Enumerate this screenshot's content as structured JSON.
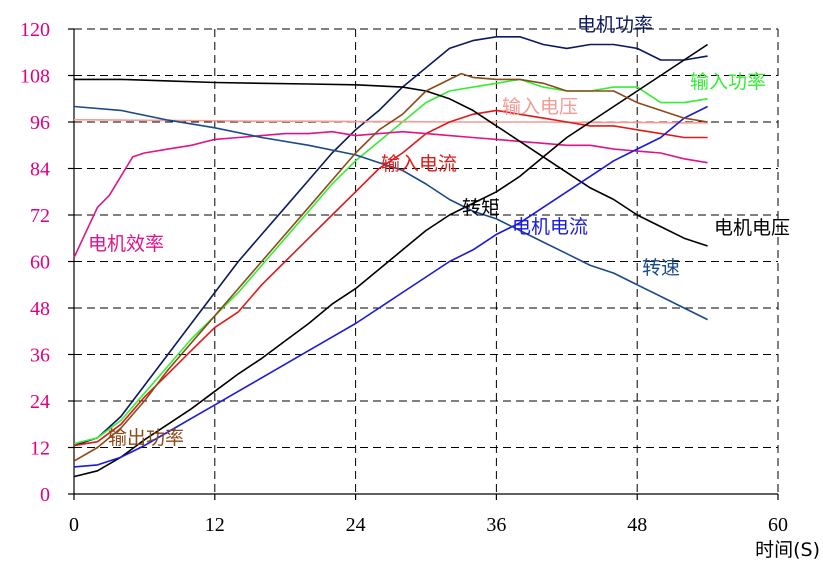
{
  "chart_data": {
    "type": "line",
    "xlabel": "时间(S)",
    "ylabel": "",
    "xlim": [
      0,
      60
    ],
    "ylim": [
      0,
      120
    ],
    "x_ticks": [
      0,
      12,
      24,
      36,
      48,
      60
    ],
    "y_ticks": [
      0,
      12,
      24,
      36,
      48,
      60,
      72,
      84,
      96,
      108,
      120
    ],
    "grid": true,
    "legend": "inline labels",
    "colors": {
      "y_tick_labels": "#e0007f",
      "x_tick_labels": "#000000"
    },
    "series": [
      {
        "name": "电机功率",
        "color": "#0b1a5e",
        "x": [
          0,
          2,
          4,
          6,
          8,
          10,
          12,
          14,
          16,
          18,
          20,
          22,
          24,
          26,
          28,
          30,
          32,
          34,
          36,
          38,
          40,
          42,
          44,
          46,
          48,
          50,
          52,
          54
        ],
        "y": [
          12.5,
          14.5,
          20,
          28,
          36,
          44,
          52,
          60,
          67,
          74,
          81,
          88,
          94,
          99,
          105,
          110,
          115,
          117,
          118,
          118,
          116,
          115,
          116,
          116,
          115,
          112,
          112,
          113
        ]
      },
      {
        "name": "输入功率",
        "color": "#33ee33",
        "x": [
          0,
          2,
          4,
          6,
          8,
          10,
          12,
          14,
          16,
          18,
          20,
          22,
          24,
          26,
          28,
          30,
          32,
          34,
          36,
          38,
          40,
          42,
          44,
          46,
          48,
          50,
          52,
          54
        ],
        "y": [
          13,
          14.5,
          19,
          26,
          33,
          40,
          46,
          52,
          59,
          66,
          73,
          80,
          86,
          91,
          96,
          101,
          104,
          105,
          106,
          107,
          105,
          104,
          104,
          105,
          105,
          101,
          101,
          102
        ]
      },
      {
        "name": "输入电压",
        "color": "#f59a94",
        "x": [
          0,
          4,
          8,
          12,
          16,
          20,
          24,
          28,
          32,
          36,
          40,
          44,
          48,
          52,
          54
        ],
        "y": [
          96.6,
          96.5,
          96.4,
          96.3,
          96.2,
          96.2,
          96.1,
          96.1,
          96.0,
          96.0,
          96.0,
          95.9,
          95.9,
          95.8,
          95.8
        ]
      },
      {
        "name": "输入电流",
        "color": "#e01a1a",
        "x": [
          0,
          2,
          4,
          6,
          8,
          10,
          12,
          14,
          16,
          18,
          20,
          22,
          24,
          26,
          28,
          30,
          32,
          34,
          36,
          38,
          40,
          42,
          44,
          46,
          48,
          50,
          52,
          54
        ],
        "y": [
          12.5,
          13.5,
          18,
          25,
          31,
          37,
          43,
          47,
          54,
          60,
          66,
          72,
          78,
          84,
          88,
          93,
          96,
          98,
          99,
          98,
          97,
          96,
          95,
          95,
          94,
          93,
          92,
          92
        ]
      },
      {
        "name": "电机效率",
        "color": "#e0148a",
        "x": [
          0,
          2,
          3,
          4,
          5,
          6,
          8,
          10,
          12,
          14,
          16,
          18,
          20,
          22,
          24,
          26,
          28,
          30,
          32,
          34,
          36,
          38,
          40,
          42,
          44,
          46,
          48,
          50,
          52,
          54
        ],
        "y": [
          61,
          74,
          77,
          82,
          87,
          88,
          89,
          90,
          91.5,
          92,
          92.5,
          93,
          93,
          93.5,
          92.5,
          93,
          93.5,
          93,
          92.5,
          92,
          91.5,
          91,
          90.5,
          90,
          90,
          89,
          88.5,
          88,
          86.5,
          85.5
        ]
      },
      {
        "name": "电机电压",
        "color": "#000000",
        "x": [
          0,
          4,
          8,
          12,
          16,
          20,
          24,
          28,
          30,
          32,
          34,
          36,
          38,
          40,
          42,
          44,
          46,
          48,
          50,
          52,
          54
        ],
        "y": [
          107,
          107,
          106.6,
          106.2,
          106,
          105.8,
          105.6,
          105,
          104,
          102,
          99,
          95,
          91,
          87,
          83,
          79,
          76,
          72,
          69,
          66,
          64
        ]
      },
      {
        "name": "转矩",
        "color": "#000000",
        "x": [
          0,
          2,
          4,
          6,
          8,
          10,
          12,
          14,
          16,
          18,
          20,
          22,
          24,
          26,
          28,
          30,
          32,
          34,
          36,
          38,
          40,
          42,
          44,
          46,
          48,
          50,
          52,
          54
        ],
        "y": [
          4.5,
          6,
          9.5,
          14,
          18,
          22,
          26.5,
          31,
          35,
          39.5,
          44,
          49,
          53,
          58,
          63,
          68,
          72,
          75,
          78,
          82,
          87,
          92,
          96,
          100,
          104,
          108,
          112,
          116
        ]
      },
      {
        "name": "电机电流",
        "color": "#1a1adc",
        "x": [
          0,
          2,
          4,
          6,
          8,
          10,
          12,
          14,
          16,
          18,
          20,
          22,
          24,
          26,
          28,
          30,
          32,
          34,
          36,
          38,
          40,
          42,
          44,
          46,
          48,
          50,
          52,
          54
        ],
        "y": [
          7,
          7.5,
          9.5,
          12.5,
          16,
          19.5,
          23,
          26.5,
          30,
          33.5,
          37,
          40.5,
          44,
          48,
          52,
          56,
          60,
          63,
          67,
          70,
          74,
          78,
          82,
          86,
          89,
          92,
          97,
          100
        ]
      },
      {
        "name": "转速",
        "color": "#1a4a8a",
        "x": [
          0,
          4,
          8,
          12,
          16,
          20,
          24,
          26,
          28,
          30,
          32,
          34,
          36,
          38,
          40,
          42,
          44,
          46,
          48,
          50,
          52,
          54
        ],
        "y": [
          100,
          99,
          96.5,
          94.5,
          92,
          90,
          87.5,
          85.5,
          83.5,
          80,
          76,
          73,
          71,
          68,
          65,
          62,
          59,
          57,
          54,
          51,
          48,
          45
        ]
      },
      {
        "name": "输出功率",
        "color": "#8b4a1a",
        "x": [
          0,
          2,
          4,
          6,
          8,
          10,
          12,
          14,
          16,
          18,
          20,
          22,
          24,
          26,
          28,
          30,
          32,
          33,
          34,
          36,
          38,
          40,
          42,
          44,
          46,
          48,
          50,
          52,
          54
        ],
        "y": [
          8.5,
          12,
          17,
          24,
          32,
          39,
          46,
          53,
          60,
          67,
          74,
          81,
          88,
          94,
          98,
          104,
          107,
          108.5,
          107.5,
          107,
          107,
          106,
          104,
          104,
          104,
          101,
          99,
          97,
          96
        ]
      }
    ]
  }
}
